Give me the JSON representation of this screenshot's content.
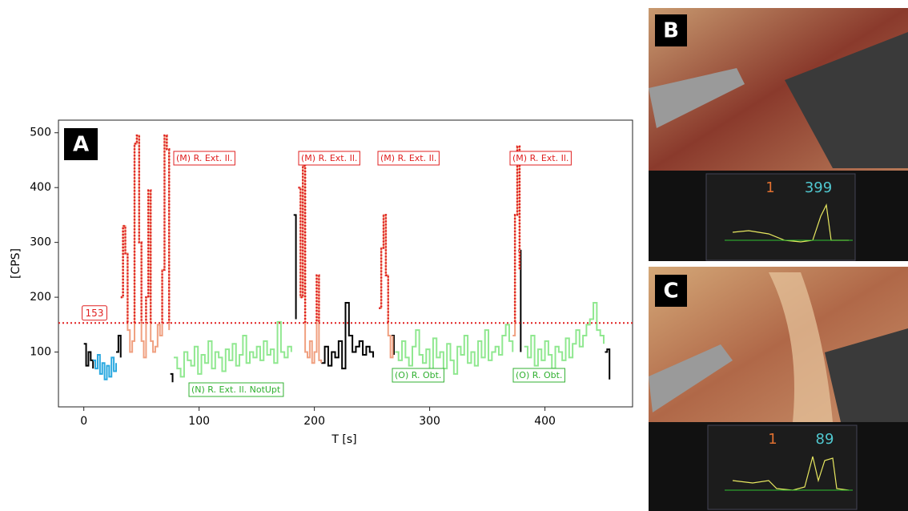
{
  "chart_data": {
    "type": "step-line",
    "panel_label": "A",
    "x_label": "T [s]",
    "y_label": "[CPS]",
    "xlim": [
      -22,
      476
    ],
    "ylim": [
      0,
      523
    ],
    "xticks": [
      0,
      100,
      200,
      300,
      400
    ],
    "yticks": [
      100,
      200,
      300,
      400,
      500
    ],
    "threshold": 153,
    "threshold_color": "#e02020",
    "series": [
      {
        "color": "#000000",
        "x": [
          0,
          2,
          4,
          6,
          8,
          null,
          28,
          30,
          32,
          null,
          75,
          77,
          null,
          182,
          184,
          null,
          206,
          209,
          212,
          215,
          218,
          221,
          224,
          227,
          230,
          233,
          236,
          239,
          242,
          245,
          248,
          251,
          null,
          267,
          269,
          null,
          377,
          379,
          null,
          452,
          454,
          456
        ],
        "values": [
          115,
          75,
          100,
          85,
          70,
          null,
          100,
          130,
          90,
          null,
          60,
          45,
          null,
          350,
          160,
          null,
          80,
          110,
          75,
          100,
          90,
          120,
          70,
          190,
          130,
          100,
          110,
          120,
          95,
          110,
          100,
          90,
          null,
          130,
          95,
          null,
          285,
          100,
          null,
          100,
          105,
          50
        ]
      },
      {
        "color": "#29a8e0",
        "x": [
          8,
          10,
          12,
          14,
          16,
          18,
          20,
          22,
          24,
          26,
          28
        ],
        "values": [
          85,
          70,
          95,
          60,
          80,
          50,
          75,
          55,
          90,
          65,
          80
        ]
      },
      {
        "color": "#f0a080",
        "above_threshold": true,
        "x": [
          32,
          34,
          36,
          38,
          40,
          42,
          44,
          46,
          48,
          50,
          52,
          54,
          56,
          58,
          60,
          62,
          64,
          66,
          68,
          70,
          72,
          74,
          null,
          186,
          188,
          190,
          192,
          194,
          196,
          198,
          200,
          202,
          204,
          206,
          null,
          256,
          258,
          260,
          262,
          264,
          266,
          268,
          null,
          372,
          374,
          376,
          378
        ],
        "values": [
          200,
          330,
          280,
          140,
          100,
          120,
          480,
          495,
          300,
          120,
          90,
          200,
          395,
          120,
          100,
          110,
          150,
          130,
          250,
          495,
          470,
          140,
          null,
          400,
          200,
          440,
          100,
          90,
          120,
          80,
          100,
          240,
          85,
          80,
          null,
          180,
          290,
          350,
          240,
          130,
          90,
          130,
          null,
          130,
          350,
          475,
          250
        ]
      },
      {
        "color": "#90e890",
        "x": [
          78,
          81,
          84,
          87,
          90,
          93,
          96,
          99,
          102,
          105,
          108,
          111,
          114,
          117,
          120,
          123,
          126,
          129,
          132,
          135,
          138,
          141,
          144,
          147,
          150,
          153,
          156,
          159,
          162,
          165,
          168,
          171,
          174,
          177,
          180,
          null,
          270,
          273,
          276,
          279,
          282,
          285,
          288,
          291,
          294,
          297,
          300,
          303,
          306,
          309,
          312,
          315,
          318,
          321,
          324,
          327,
          330,
          333,
          336,
          339,
          342,
          345,
          348,
          351,
          354,
          357,
          360,
          363,
          366,
          369,
          372,
          null,
          382,
          385,
          388,
          391,
          394,
          397,
          400,
          403,
          406,
          409,
          412,
          415,
          418,
          421,
          424,
          427,
          430,
          433,
          436,
          439,
          442,
          445,
          448,
          451
        ],
        "values": [
          90,
          70,
          55,
          100,
          85,
          75,
          110,
          60,
          95,
          80,
          120,
          70,
          100,
          90,
          65,
          105,
          85,
          115,
          75,
          95,
          130,
          80,
          100,
          90,
          110,
          85,
          120,
          95,
          105,
          80,
          155,
          100,
          90,
          110,
          100,
          null,
          100,
          85,
          120,
          90,
          75,
          110,
          140,
          95,
          80,
          105,
          65,
          125,
          90,
          100,
          70,
          115,
          85,
          60,
          110,
          95,
          130,
          80,
          100,
          75,
          120,
          90,
          140,
          85,
          100,
          110,
          95,
          130,
          150,
          120,
          100,
          null,
          110,
          90,
          130,
          75,
          105,
          85,
          120,
          95,
          70,
          110,
          100,
          85,
          125,
          90,
          115,
          140,
          110,
          130,
          150,
          160,
          190,
          140,
          130,
          115
        ]
      }
    ],
    "annotations": [
      {
        "text": "(M) R. Ext. Il.",
        "color": "#e02020"
      },
      {
        "text": "(M) R. Ext. Il.",
        "color": "#e02020"
      },
      {
        "text": "(M) R. Ext. Il.",
        "color": "#e02020"
      },
      {
        "text": "(M) R. Ext. Il.",
        "color": "#e02020"
      },
      {
        "text": "(N) R. Ext. Il. NotUpt",
        "color": "#30b030"
      },
      {
        "text": "(O) R. Obt.",
        "color": "#30b030"
      },
      {
        "text": "(O) R. Obt.",
        "color": "#30b030"
      }
    ]
  },
  "panels": [
    {
      "label": "B",
      "counts": "1",
      "rate": "399"
    },
    {
      "label": "C",
      "counts": "1",
      "rate": "89"
    }
  ]
}
